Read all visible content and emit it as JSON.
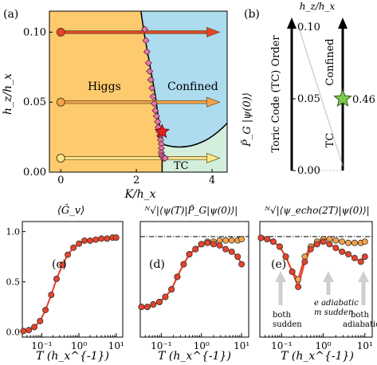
{
  "figure": {
    "panel_labels": [
      "(a)",
      "(b)",
      "(c)",
      "(d)",
      "(e)"
    ]
  },
  "chart_data": [
    {
      "panel": "(a)",
      "type": "scatter",
      "xlabel": "K/h_x",
      "ylabel": "h_z/h_x",
      "xlim": [
        -0.3,
        4.4
      ],
      "ylim": [
        0.0,
        0.115
      ],
      "xticks": [
        0,
        2,
        4
      ],
      "yticks": [
        0.0,
        0.05,
        0.1
      ],
      "ytick_labels": [
        "0.00",
        "0.05",
        "0.10"
      ],
      "regions": [
        {
          "name": "Higgs",
          "color": "#fdcb6e"
        },
        {
          "name": "Confined",
          "color": "#aedcef"
        },
        {
          "name": "TC",
          "color": "#d3eedb"
        }
      ],
      "region_labels": [
        "Higgs",
        "Confined",
        "TC"
      ],
      "boundary": {
        "x": [
          2.12,
          2.2,
          2.3,
          2.4,
          2.5,
          2.55,
          2.6,
          2.65,
          2.68
        ],
        "y": [
          0.115,
          0.1,
          0.085,
          0.07,
          0.055,
          0.045,
          0.035,
          0.03,
          0.027
        ]
      },
      "critical_points": {
        "x": [
          2.22,
          2.25,
          2.28,
          2.32,
          2.35,
          2.38,
          2.41,
          2.44,
          2.47,
          2.5,
          2.53,
          2.56,
          2.58,
          2.6,
          2.62,
          2.64,
          2.66,
          2.66,
          2.66,
          2.67,
          2.69,
          2.72,
          2.76
        ],
        "y": [
          0.102,
          0.094,
          0.086,
          0.078,
          0.072,
          0.066,
          0.06,
          0.054,
          0.049,
          0.044,
          0.04,
          0.036,
          0.032,
          0.029,
          0.026,
          0.023,
          0.02,
          0.017,
          0.014,
          0.012,
          0.011,
          0.01,
          0.01
        ],
        "color": "#e879a8"
      },
      "star": {
        "x": 2.68,
        "y": 0.029,
        "color": "#e32020"
      },
      "arrows": [
        {
          "y": 0.1,
          "x_start": 0.0,
          "x_end": 4.2,
          "color": "#e8432a"
        },
        {
          "y": 0.05,
          "x_start": 0.0,
          "x_end": 4.2,
          "color": "#f5a34a"
        },
        {
          "y": 0.01,
          "x_start": 0.0,
          "x_end": 4.2,
          "color": "#fde68a"
        }
      ]
    },
    {
      "panel": "(b)",
      "type": "line",
      "axis_label": "h_z/h_x",
      "yticks": [
        0.0,
        0.05,
        0.1
      ],
      "ytick_labels": [
        "0.00",
        "0.05",
        "0.10"
      ],
      "left_label": "P̃_G |ψ(0)⟩",
      "left_bar_top": "Toric Code (TC) Order",
      "right_bar_top": "Confined",
      "right_bar_bottom": "TC",
      "star": {
        "y": 0.05,
        "label": "0.46",
        "color": "#7ec850"
      },
      "line": {
        "x": [
          0.0,
          1.0
        ],
        "y": [
          0.1,
          0.0
        ]
      }
    },
    {
      "panel": "(c)",
      "type": "line",
      "title": "⟨Ĝ_v⟩",
      "xlabel": "T (h_x^{-1})",
      "xscale": "log",
      "xlim": [
        0.03,
        15
      ],
      "ylim": [
        -0.05,
        1.1
      ],
      "xticks": [
        0.1,
        1,
        10
      ],
      "xtick_labels": [
        "10⁻¹",
        "10⁰",
        "10¹"
      ],
      "yticks": [
        0.0,
        0.5,
        1.0
      ],
      "ytick_labels": [
        "0.0",
        "0.5",
        "1.0"
      ],
      "series": [
        {
          "line_color": "#e8432a",
          "point_color": "#e8432a",
          "x": [
            0.032,
            0.045,
            0.063,
            0.09,
            0.126,
            0.18,
            0.25,
            0.36,
            0.5,
            0.71,
            1.0,
            1.41,
            2.0,
            2.83,
            4.0,
            5.66,
            8.0,
            10.0
          ],
          "y": [
            0.01,
            0.02,
            0.05,
            0.11,
            0.22,
            0.37,
            0.53,
            0.67,
            0.77,
            0.84,
            0.88,
            0.91,
            0.91,
            0.92,
            0.93,
            0.93,
            0.94,
            0.94
          ]
        }
      ]
    },
    {
      "panel": "(d)",
      "type": "line",
      "title": "ᴺ√|⟨ψ(T)|P̃_G|ψ(0)⟩|",
      "xlabel": "T (h_x^{-1})",
      "xscale": "log",
      "xlim": [
        0.03,
        15
      ],
      "ylim": [
        0.6,
        1.06
      ],
      "xticks": [
        0.1,
        1,
        10
      ],
      "xtick_labels": [
        "10⁻¹",
        "10⁰",
        "10¹"
      ],
      "reference_line": 1.0,
      "series": [
        {
          "line_color": "#e8432a",
          "point_color": "#f5a34a",
          "x": [
            0.032,
            0.045,
            0.063,
            0.09,
            0.126,
            0.18,
            0.25,
            0.36,
            0.5,
            0.71,
            1.0,
            1.41,
            2.0,
            2.83,
            4.0,
            5.66,
            8.0,
            10.0
          ],
          "y": [
            0.72,
            0.72,
            0.73,
            0.74,
            0.76,
            0.79,
            0.84,
            0.89,
            0.93,
            0.95,
            0.97,
            0.98,
            0.98,
            0.985,
            0.985,
            0.985,
            0.985,
            0.99
          ]
        },
        {
          "line_color": "#e8432a",
          "point_color": "#e8432a",
          "x": [
            0.032,
            0.045,
            0.063,
            0.09,
            0.126,
            0.18,
            0.25,
            0.36,
            0.5,
            0.71,
            1.0,
            1.41,
            2.0,
            2.83,
            4.0,
            5.66,
            8.0,
            10.0
          ],
          "y": [
            0.72,
            0.72,
            0.73,
            0.74,
            0.76,
            0.79,
            0.84,
            0.89,
            0.93,
            0.95,
            0.97,
            0.975,
            0.97,
            0.965,
            0.95,
            0.94,
            0.92,
            0.89
          ]
        }
      ]
    },
    {
      "panel": "(e)",
      "type": "line",
      "title": "ᴺ√|⟨ψ_echo(2T)|ψ(0)⟩|",
      "xlabel": "T (h_x^{-1})",
      "xscale": "log",
      "xlim": [
        0.03,
        15
      ],
      "ylim": [
        0.6,
        1.06
      ],
      "xticks": [
        0.1,
        1,
        10
      ],
      "xtick_labels": [
        "10⁻¹",
        "10⁰",
        "10¹"
      ],
      "reference_line": 1.0,
      "annotations": [
        {
          "text_lines": [
            "both",
            "sudden"
          ],
          "x": 0.045,
          "y": 0.78
        },
        {
          "text_lines": [
            "e adiabatic",
            "m sudden"
          ],
          "x": 0.6,
          "y": 0.83
        },
        {
          "text_lines": [
            "both",
            "adiabatic"
          ],
          "x": 10.0,
          "y": 0.8
        }
      ],
      "series": [
        {
          "line_color": "#e8432a",
          "point_color": "#f5a34a",
          "x": [
            0.032,
            0.045,
            0.063,
            0.09,
            0.126,
            0.18,
            0.25,
            0.36,
            0.5,
            0.71,
            1.0,
            1.41,
            2.0,
            2.83,
            4.0,
            5.66,
            8.0,
            10.0
          ],
          "y": [
            0.995,
            0.99,
            0.98,
            0.96,
            0.92,
            0.86,
            0.83,
            0.92,
            0.96,
            0.98,
            0.99,
            0.99,
            0.985,
            0.98,
            0.975,
            0.975,
            0.975,
            0.98
          ]
        },
        {
          "line_color": "#e8432a",
          "point_color": "#e8432a",
          "x": [
            0.032,
            0.045,
            0.063,
            0.09,
            0.126,
            0.18,
            0.25,
            0.36,
            0.5,
            0.71,
            1.0,
            1.41,
            2.0,
            2.83,
            4.0,
            5.66,
            8.0,
            10.0
          ],
          "y": [
            0.995,
            0.99,
            0.98,
            0.96,
            0.92,
            0.86,
            0.8,
            0.9,
            0.95,
            0.97,
            0.98,
            0.97,
            0.955,
            0.94,
            0.93,
            0.915,
            0.9,
            0.92
          ]
        }
      ]
    }
  ]
}
